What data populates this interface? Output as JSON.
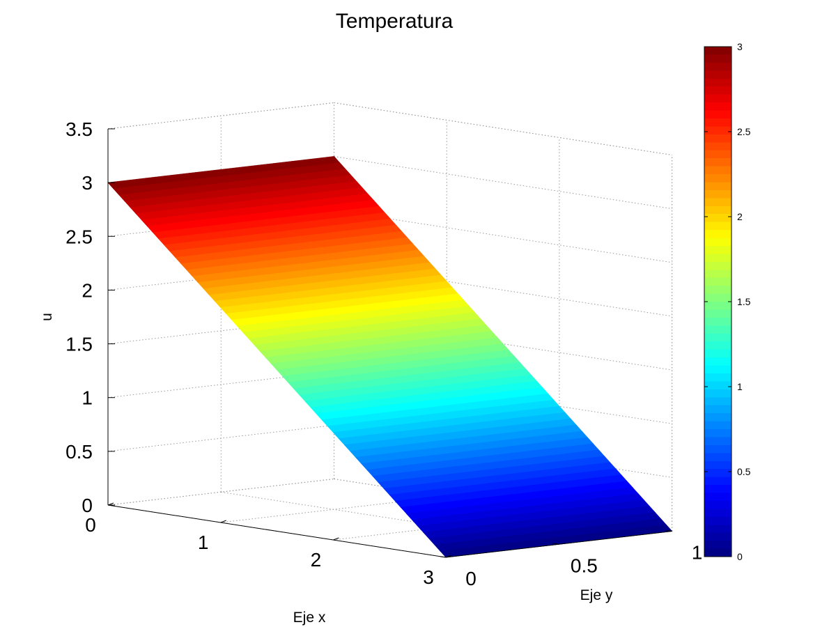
{
  "chart_data": {
    "type": "surface",
    "title": "Temperatura",
    "xlabel": "Eje x",
    "ylabel": "Eje y",
    "zlabel": "u",
    "xlim": [
      0,
      3
    ],
    "ylim": [
      0,
      1
    ],
    "zlim": [
      0,
      3.5
    ],
    "x_ticks": [
      "0",
      "1",
      "2",
      "3"
    ],
    "y_ticks": [
      "0",
      "0.5",
      "1"
    ],
    "z_ticks": [
      "0",
      "0.5",
      "1",
      "1.5",
      "2",
      "2.5",
      "3",
      "3.5"
    ],
    "surface": {
      "description_formula": "u = 3 - x",
      "corners": [
        {
          "x": 0,
          "y": 0,
          "u": 3
        },
        {
          "x": 0,
          "y": 1,
          "u": 3
        },
        {
          "x": 3,
          "y": 1,
          "u": 0
        },
        {
          "x": 3,
          "y": 0,
          "u": 0
        }
      ]
    },
    "grid": true,
    "colormap": "jet",
    "colorbar": {
      "range": [
        0,
        3
      ],
      "ticks": [
        "0",
        "0.5",
        "1",
        "1.5",
        "2",
        "2.5",
        "3"
      ],
      "placement": "right"
    }
  }
}
